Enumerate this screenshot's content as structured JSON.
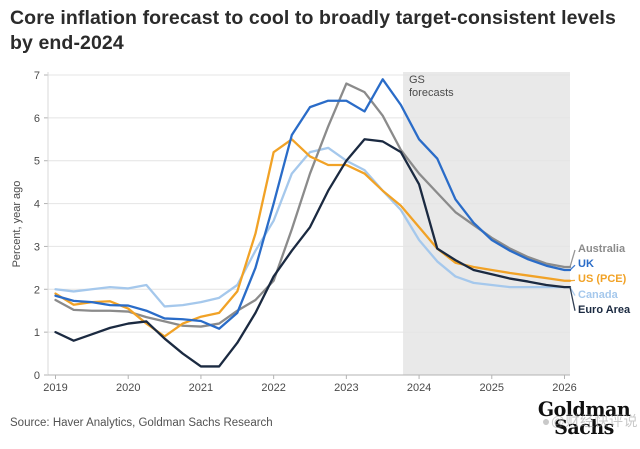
{
  "header": {
    "title": "Core inflation forecast to cool to broadly target-consistent levels by end-2024"
  },
  "chart": {
    "y_axis_label": "Percent, year ago",
    "forecast_label_lines": [
      "GS",
      "forecasts"
    ],
    "forecast_fill": "#e9e9e9",
    "gridline_color": "#e4e4e4",
    "axis_color": "#b3b3b3",
    "tick_label_color": "#4a4a4a"
  },
  "chart_data": {
    "type": "line",
    "title": "Core inflation forecast to cool to broadly target-consistent levels by end-2024",
    "xlabel": "",
    "ylabel": "Percent, year ago",
    "xlim": [
      2019,
      2026.08
    ],
    "ylim": [
      0,
      7
    ],
    "xticks": [
      2019,
      2020,
      2021,
      2022,
      2023,
      2024,
      2025,
      2026
    ],
    "yticks": [
      0,
      1,
      2,
      3,
      4,
      5,
      6,
      7
    ],
    "grid": true,
    "legend_position": "right",
    "forecast_region": {
      "start": 2023.78,
      "end": 2026.08,
      "label": "GS forecasts"
    },
    "x": [
      2019,
      2019.25,
      2019.5,
      2019.75,
      2020,
      2020.25,
      2020.5,
      2020.75,
      2021,
      2021.25,
      2021.5,
      2021.75,
      2022,
      2022.25,
      2022.5,
      2022.75,
      2023,
      2023.25,
      2023.5,
      2023.75,
      2024,
      2024.25,
      2024.5,
      2024.75,
      2025,
      2025.25,
      2025.5,
      2025.75,
      2026
    ],
    "series": [
      {
        "name": "Australia",
        "color": "#8b8b8b",
        "values": [
          1.75,
          1.52,
          1.5,
          1.5,
          1.48,
          1.35,
          1.25,
          1.15,
          1.13,
          1.2,
          1.5,
          1.75,
          2.2,
          3.4,
          4.7,
          5.8,
          6.8,
          6.6,
          6.05,
          5.25,
          4.7,
          4.25,
          3.8,
          3.5,
          3.2,
          2.95,
          2.75,
          2.6,
          2.52
        ]
      },
      {
        "name": "UK",
        "color": "#2a6cc8",
        "values": [
          1.85,
          1.73,
          1.7,
          1.63,
          1.62,
          1.5,
          1.32,
          1.3,
          1.26,
          1.08,
          1.45,
          2.5,
          4.0,
          5.6,
          6.25,
          6.4,
          6.4,
          6.15,
          6.9,
          6.3,
          5.5,
          5.05,
          4.1,
          3.55,
          3.15,
          2.9,
          2.7,
          2.55,
          2.45
        ]
      },
      {
        "name": "US (PCE)",
        "color": "#f1a226",
        "values": [
          1.9,
          1.64,
          1.7,
          1.72,
          1.55,
          1.2,
          0.9,
          1.2,
          1.36,
          1.45,
          1.95,
          3.3,
          5.2,
          5.5,
          5.1,
          4.9,
          4.9,
          4.7,
          4.3,
          3.95,
          3.45,
          2.95,
          2.62,
          2.52,
          2.45,
          2.38,
          2.32,
          2.26,
          2.2
        ]
      },
      {
        "name": "Canada",
        "color": "#a5c8ec",
        "values": [
          2.0,
          1.95,
          2.0,
          2.05,
          2.02,
          2.1,
          1.6,
          1.63,
          1.7,
          1.8,
          2.1,
          2.9,
          3.6,
          4.7,
          5.2,
          5.3,
          5.0,
          4.78,
          4.3,
          3.85,
          3.15,
          2.65,
          2.3,
          2.15,
          2.1,
          2.05,
          2.05,
          2.05,
          2.05
        ]
      },
      {
        "name": "Euro Area",
        "color": "#1b2a41",
        "values": [
          1.0,
          0.8,
          0.95,
          1.1,
          1.2,
          1.25,
          0.85,
          0.5,
          0.2,
          0.2,
          0.75,
          1.45,
          2.3,
          2.9,
          3.45,
          4.3,
          5.0,
          5.5,
          5.45,
          5.2,
          4.45,
          2.95,
          2.68,
          2.45,
          2.35,
          2.25,
          2.18,
          2.1,
          2.05
        ]
      }
    ]
  },
  "footer": {
    "source": "Source: Haver Analytics, Goldman Sachs Research",
    "logo_line1": "Goldman",
    "logo_line2": "Sachs",
    "watermark": "●@财经快评说"
  }
}
